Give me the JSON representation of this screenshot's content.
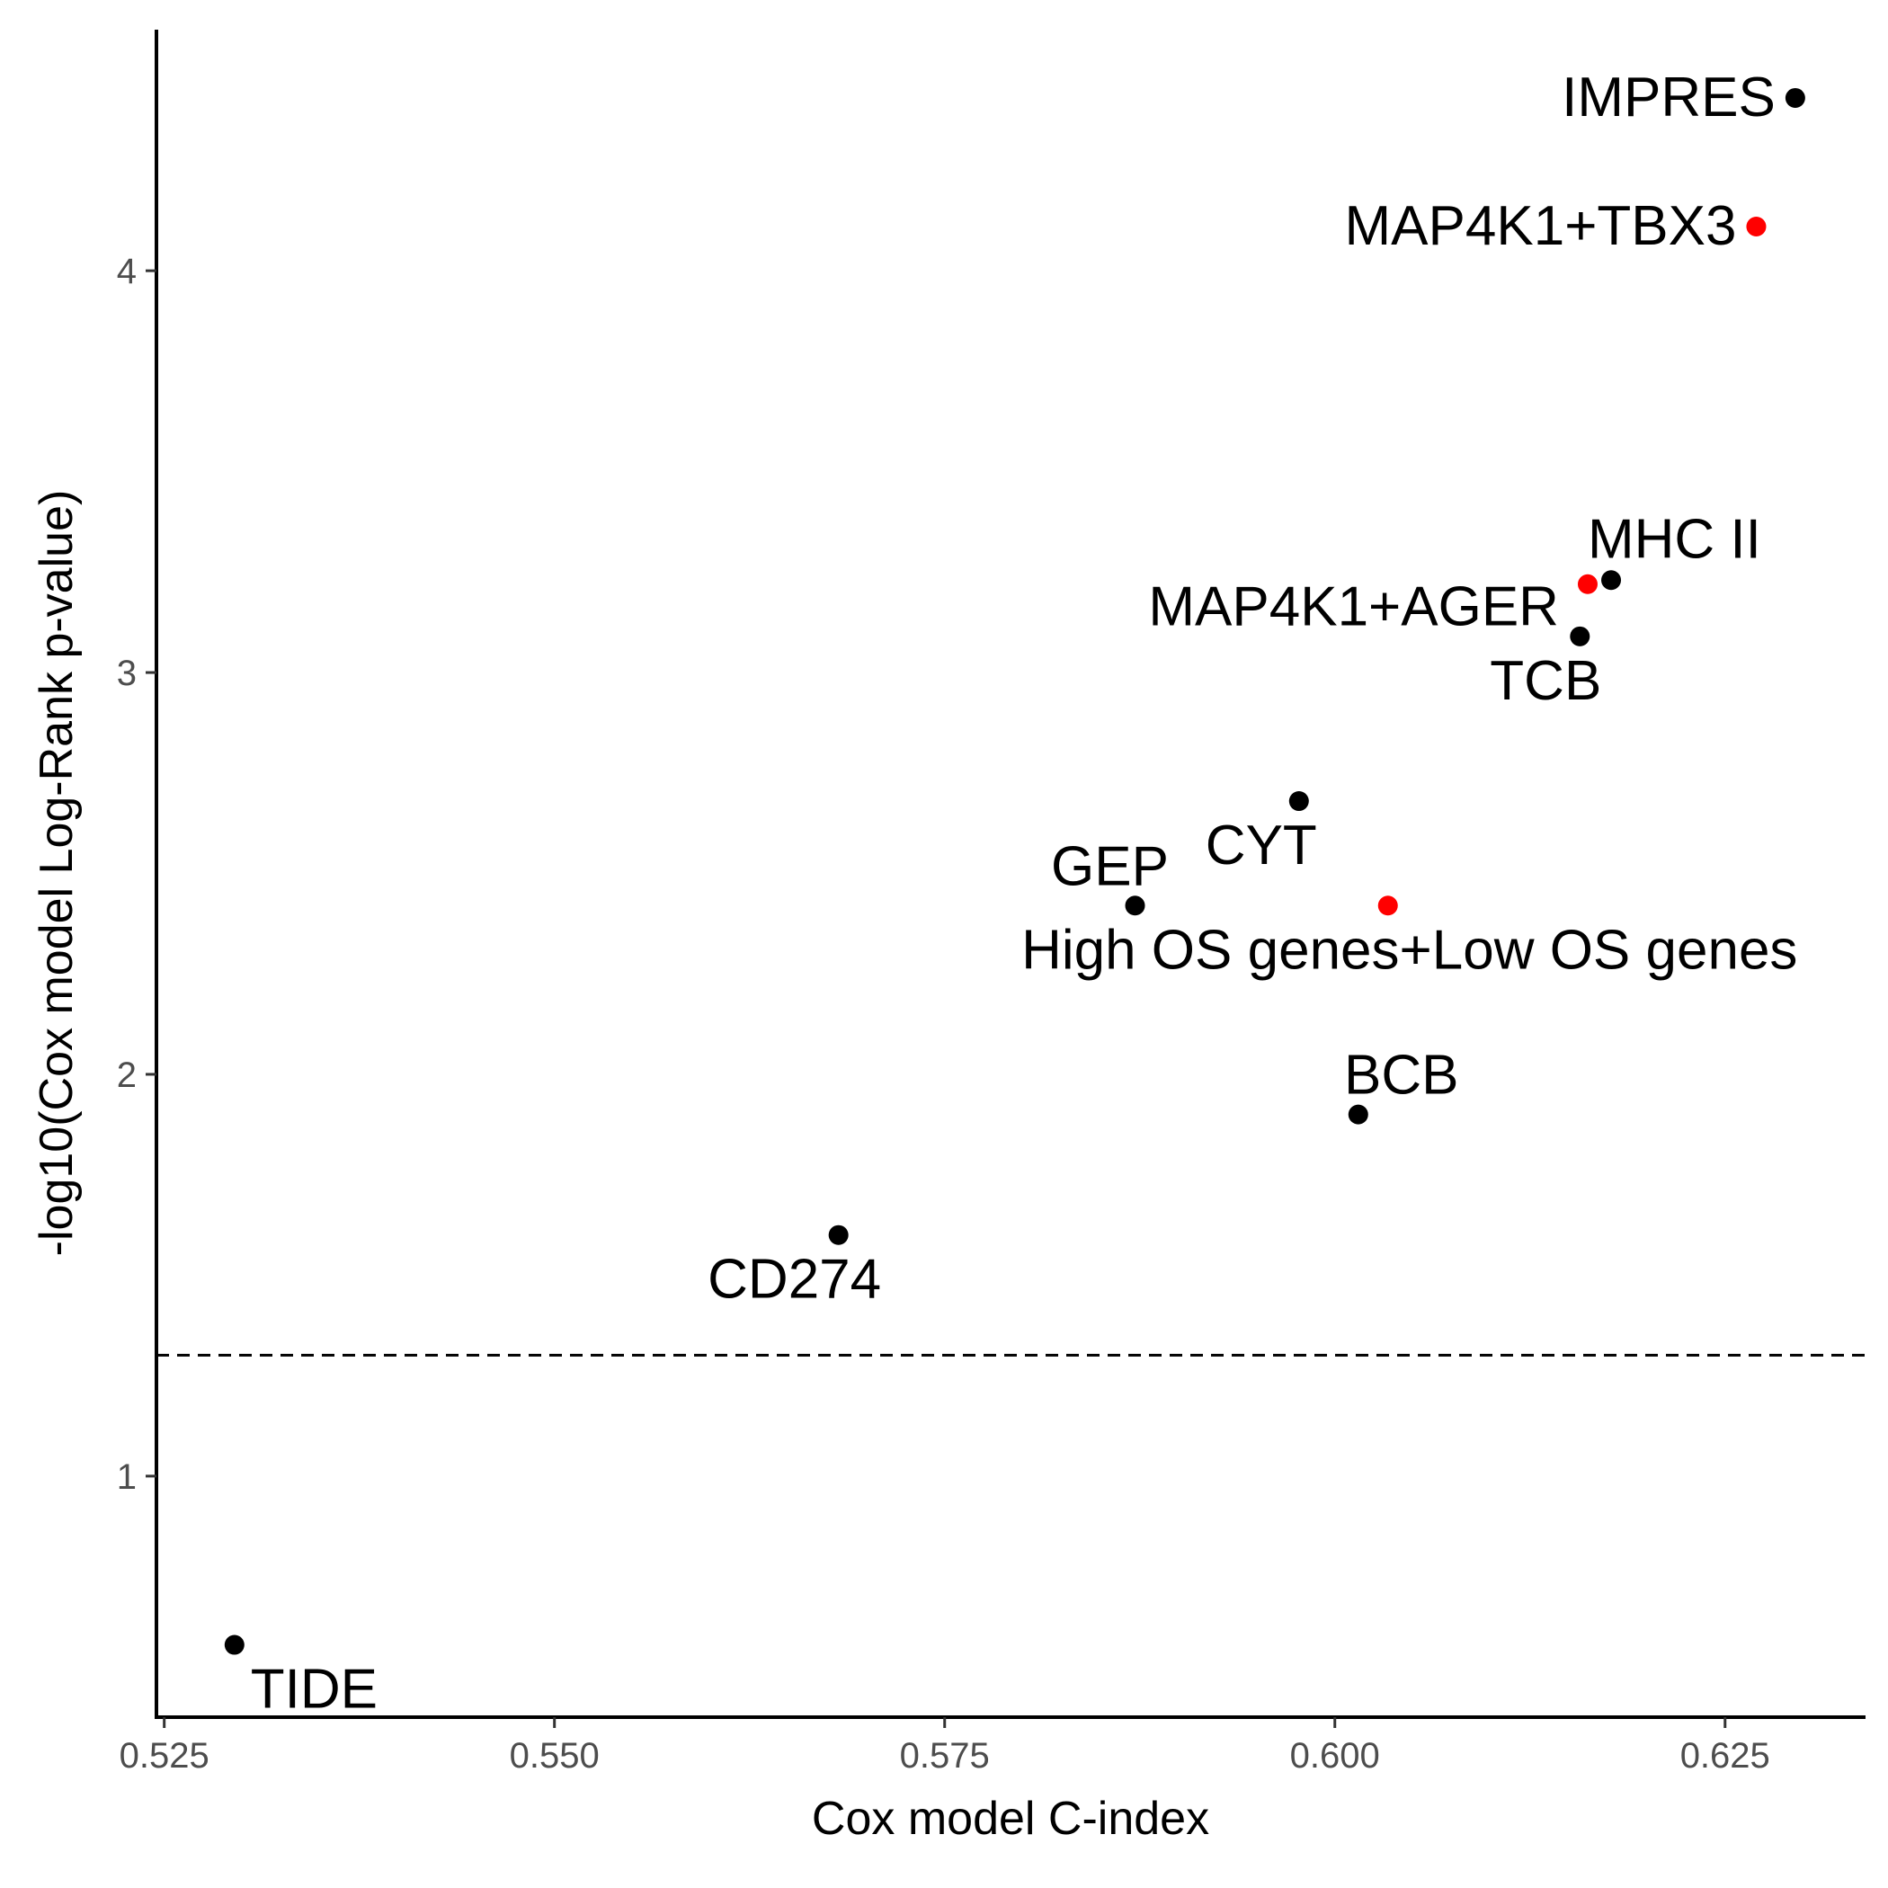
{
  "chart_data": {
    "type": "scatter",
    "title": "",
    "xlabel": "Cox model C-index",
    "ylabel": "-log10(Cox model Log-Rank p-value)",
    "xlim": [
      0.5245,
      0.634
    ],
    "ylim": [
      0.4,
      4.6
    ],
    "x_ticks": [
      0.525,
      0.55,
      0.575,
      0.6,
      0.625
    ],
    "x_tick_labels": [
      "0.525",
      "0.550",
      "0.575",
      "0.600",
      "0.625"
    ],
    "y_ticks": [
      1,
      2,
      3,
      4
    ],
    "y_tick_labels": [
      "1",
      "2",
      "3",
      "4"
    ],
    "reference_line": {
      "y": 1.301,
      "style": "dashed"
    },
    "grid": false,
    "legend": "none",
    "colors": {
      "highlight": "#ff0000",
      "default": "#000000"
    },
    "points": [
      {
        "label": "IMPRES",
        "x": 0.6295,
        "y": 4.43,
        "highlight": false
      },
      {
        "label": "MAP4K1+TBX3",
        "x": 0.627,
        "y": 4.11,
        "highlight": true
      },
      {
        "label": "MHC II",
        "x": 0.6177,
        "y": 3.23,
        "highlight": false
      },
      {
        "label": "MAP4K1+AGER",
        "x": 0.6162,
        "y": 3.22,
        "highlight": true
      },
      {
        "label": "TCB",
        "x": 0.6157,
        "y": 3.09,
        "highlight": false
      },
      {
        "label": "CYT",
        "x": 0.5977,
        "y": 2.68,
        "highlight": false
      },
      {
        "label": "GEP",
        "x": 0.5872,
        "y": 2.42,
        "highlight": false
      },
      {
        "label": "High OS genes+Low OS genes",
        "x": 0.6034,
        "y": 2.42,
        "highlight": true
      },
      {
        "label": "BCB",
        "x": 0.6015,
        "y": 1.9,
        "highlight": false
      },
      {
        "label": "CD274",
        "x": 0.5682,
        "y": 1.6,
        "highlight": false
      },
      {
        "label": "TIDE",
        "x": 0.5295,
        "y": 0.58,
        "highlight": false
      }
    ]
  }
}
